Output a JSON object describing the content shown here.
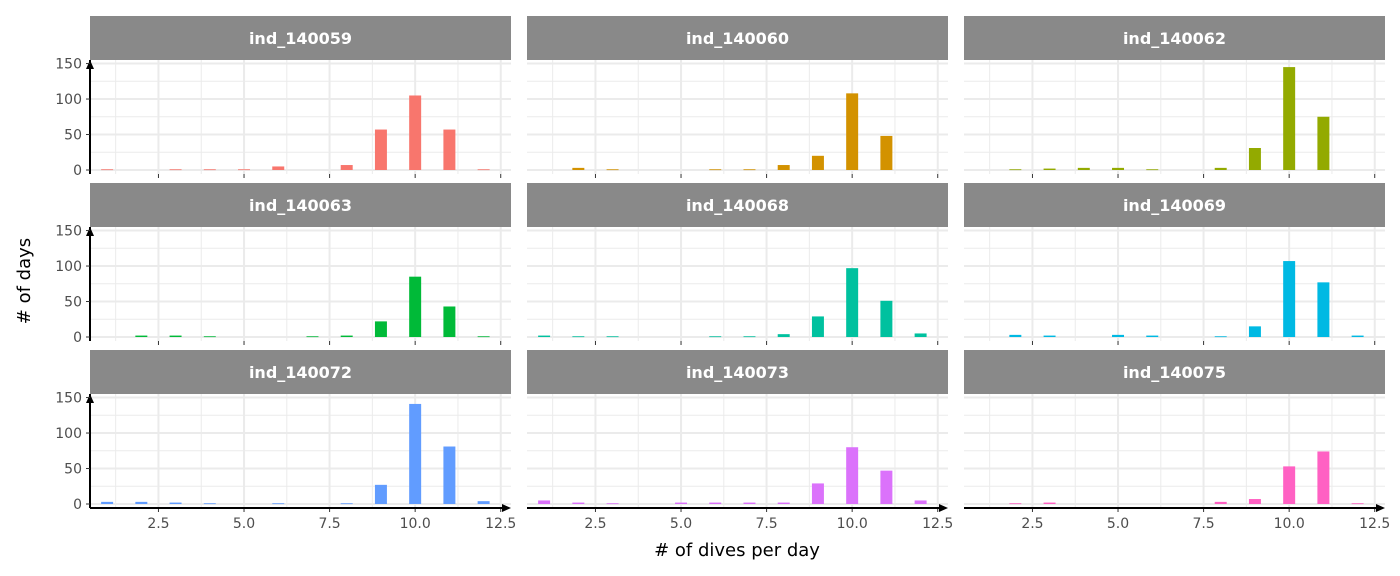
{
  "chart_data": {
    "type": "bar",
    "title": "",
    "xlabel": "# of dives per day",
    "ylabel": "# of days",
    "xlim": [
      0.5,
      12.8
    ],
    "ylim": [
      0,
      155
    ],
    "x_ticks": [
      2.5,
      5.0,
      7.5,
      10.0,
      12.5
    ],
    "x_tick_labels": [
      "2.5",
      "5.0",
      "7.5",
      "10.0",
      "12.5"
    ],
    "y_ticks": [
      0,
      50,
      100,
      150
    ],
    "y_tick_labels": [
      "0",
      "50",
      "100",
      "150"
    ],
    "grid": true,
    "legend": "none",
    "facets": [
      {
        "name": "ind_140059",
        "color": "#F8766D",
        "x": [
          1,
          3,
          4,
          5,
          6,
          8,
          9,
          10,
          11,
          12
        ],
        "values": [
          1,
          1,
          1,
          1,
          5,
          7,
          57,
          105,
          57,
          1
        ]
      },
      {
        "name": "ind_140060",
        "color": "#D39200",
        "x": [
          2,
          3,
          6,
          7,
          8,
          9,
          10,
          11
        ],
        "values": [
          3,
          1,
          1,
          1,
          7,
          20,
          108,
          48
        ]
      },
      {
        "name": "ind_140062",
        "color": "#93AA00",
        "x": [
          2,
          3,
          4,
          5,
          6,
          8,
          9,
          10,
          11
        ],
        "values": [
          1,
          2,
          3,
          3,
          1,
          3,
          31,
          145,
          75
        ]
      },
      {
        "name": "ind_140063",
        "color": "#00BA38",
        "x": [
          2,
          3,
          4,
          7,
          8,
          9,
          10,
          11,
          12
        ],
        "values": [
          2,
          2,
          1,
          1,
          2,
          22,
          85,
          43,
          1
        ]
      },
      {
        "name": "ind_140068",
        "color": "#00C19F",
        "x": [
          1,
          2,
          3,
          6,
          7,
          8,
          9,
          10,
          11,
          12
        ],
        "values": [
          2,
          1,
          1,
          1,
          1,
          4,
          29,
          97,
          51,
          5
        ]
      },
      {
        "name": "ind_140069",
        "color": "#00B9E3",
        "x": [
          2,
          3,
          5,
          6,
          8,
          9,
          10,
          11,
          12
        ],
        "values": [
          3,
          2,
          3,
          2,
          1,
          15,
          107,
          77,
          2
        ]
      },
      {
        "name": "ind_140072",
        "color": "#619CFF",
        "x": [
          1,
          2,
          3,
          4,
          6,
          8,
          9,
          10,
          11,
          12
        ],
        "values": [
          3,
          3,
          2,
          1,
          1,
          1,
          27,
          141,
          81,
          4
        ]
      },
      {
        "name": "ind_140073",
        "color": "#DB72FB",
        "x": [
          1,
          2,
          3,
          5,
          6,
          7,
          8,
          9,
          10,
          11,
          12
        ],
        "values": [
          5,
          2,
          1,
          2,
          2,
          2,
          2,
          29,
          80,
          47,
          5
        ]
      },
      {
        "name": "ind_140075",
        "color": "#FF61C3",
        "x": [
          2,
          3,
          8,
          9,
          10,
          11,
          12
        ],
        "values": [
          1,
          2,
          3,
          7,
          53,
          74,
          1
        ]
      }
    ]
  }
}
